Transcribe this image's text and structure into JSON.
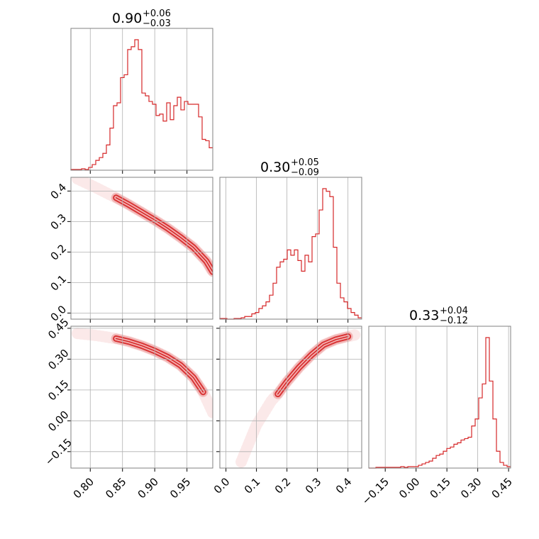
{
  "colors": {
    "series": "#d62728",
    "grid": "#b0b0b0",
    "frame": "#808080"
  },
  "chart_data": {
    "type": "corner",
    "grid": true,
    "parameters": [
      {
        "title": {
          "base": "0.90",
          "plus": "+0.06",
          "minus": "−0.03"
        },
        "range": [
          0.77,
          0.99
        ],
        "ticks": [
          0.8,
          0.85,
          0.9,
          0.95
        ],
        "tick_labels": [
          "0.80",
          "0.85",
          "0.90",
          "0.95"
        ]
      },
      {
        "title": {
          "base": "0.30",
          "plus": "+0.05",
          "minus": "−0.09"
        },
        "range": [
          -0.02,
          0.445
        ],
        "ticks": [
          0.0,
          0.1,
          0.2,
          0.3,
          0.4
        ],
        "tick_labels": [
          "0.0",
          "0.1",
          "0.2",
          "0.3",
          "0.4"
        ]
      },
      {
        "title": {
          "base": "0.33",
          "plus": "+0.04",
          "minus": "−0.12"
        },
        "range": [
          -0.23,
          0.46
        ],
        "ticks": [
          -0.15,
          0.0,
          0.15,
          0.3,
          0.45
        ],
        "tick_labels": [
          "−0.15",
          "0.00",
          "0.15",
          "0.30",
          "0.45"
        ]
      }
    ],
    "histograms": [
      {
        "param": 0,
        "edges": [
          0.77,
          0.7755,
          0.781,
          0.7865,
          0.792,
          0.7975,
          0.803,
          0.8085,
          0.814,
          0.8195,
          0.825,
          0.8305,
          0.836,
          0.8415,
          0.847,
          0.8525,
          0.858,
          0.8635,
          0.869,
          0.8745,
          0.88,
          0.8855,
          0.891,
          0.8965,
          0.902,
          0.9075,
          0.913,
          0.9185,
          0.924,
          0.9295,
          0.935,
          0.9405,
          0.946,
          0.9515,
          0.957,
          0.9625,
          0.968,
          0.9735,
          0.979,
          0.9845,
          0.99
        ],
        "counts": [
          0.005,
          0.005,
          0.005,
          0.01,
          0.005,
          0.02,
          0.04,
          0.07,
          0.09,
          0.12,
          0.18,
          0.3,
          0.46,
          0.48,
          0.66,
          0.68,
          0.86,
          0.88,
          0.93,
          0.86,
          0.55,
          0.53,
          0.49,
          0.47,
          0.39,
          0.4,
          0.35,
          0.48,
          0.36,
          0.46,
          0.52,
          0.43,
          0.49,
          0.47,
          0.47,
          0.47,
          0.38,
          0.22,
          0.21,
          0.16
        ]
      },
      {
        "param": 1,
        "edges": [
          -0.02,
          -0.00838,
          0.00325,
          0.01488,
          0.0265,
          0.03813,
          0.04975,
          0.06138,
          0.073,
          0.08463,
          0.09625,
          0.10788,
          0.1195,
          0.13113,
          0.14275,
          0.15438,
          0.166,
          0.17763,
          0.18925,
          0.20088,
          0.2125,
          0.22413,
          0.23575,
          0.24738,
          0.259,
          0.27063,
          0.28225,
          0.29388,
          0.3055,
          0.31713,
          0.32875,
          0.34038,
          0.352,
          0.36363,
          0.37525,
          0.38688,
          0.3985,
          0.41013,
          0.42175,
          0.43338,
          0.445
        ],
        "counts": [
          0.005,
          0.005,
          0.0,
          0.0,
          0.005,
          0.005,
          0.01,
          0.02,
          0.02,
          0.04,
          0.05,
          0.08,
          0.1,
          0.13,
          0.18,
          0.27,
          0.39,
          0.43,
          0.45,
          0.52,
          0.48,
          0.52,
          0.44,
          0.36,
          0.48,
          0.43,
          0.62,
          0.64,
          0.82,
          0.98,
          0.96,
          0.92,
          0.54,
          0.27,
          0.16,
          0.13,
          0.08,
          0.05,
          0.03,
          0.01
        ]
      },
      {
        "param": 2,
        "edges": [
          -0.23,
          -0.21275,
          -0.1955,
          -0.17825,
          -0.161,
          -0.14375,
          -0.1265,
          -0.10925,
          -0.092,
          -0.07475,
          -0.0575,
          -0.04025,
          -0.023,
          -0.00575,
          0.0115,
          0.02875,
          0.046,
          0.06325,
          0.0805,
          0.09775,
          0.115,
          0.13225,
          0.1495,
          0.16675,
          0.184,
          0.20125,
          0.2185,
          0.23575,
          0.253,
          0.27025,
          0.2875,
          0.30475,
          0.322,
          0.33925,
          0.3565,
          0.37375,
          0.391,
          0.40825,
          0.4255,
          0.44275,
          0.46
        ],
        "counts": [
          0.0,
          0.0,
          0.005,
          0.005,
          0.005,
          0.005,
          0.005,
          0.005,
          0.005,
          0.01,
          0.005,
          0.01,
          0.01,
          0.01,
          0.02,
          0.03,
          0.04,
          0.05,
          0.07,
          0.09,
          0.1,
          0.12,
          0.14,
          0.15,
          0.17,
          0.18,
          0.2,
          0.21,
          0.22,
          0.3,
          0.35,
          0.5,
          0.6,
          0.93,
          0.62,
          0.35,
          0.12,
          0.04,
          0.02,
          0.01
        ]
      }
    ],
    "joint_distributions": [
      {
        "x_param": 0,
        "y_param": 1,
        "ridge": [
          [
            0.78,
            0.44
          ],
          [
            0.81,
            0.41
          ],
          [
            0.84,
            0.378
          ],
          [
            0.86,
            0.355
          ],
          [
            0.88,
            0.33
          ],
          [
            0.9,
            0.305
          ],
          [
            0.92,
            0.278
          ],
          [
            0.94,
            0.248
          ],
          [
            0.96,
            0.215
          ],
          [
            0.98,
            0.17
          ],
          [
            0.99,
            0.135
          ]
        ],
        "core_x_range": [
          0.835,
          0.99
        ]
      },
      {
        "x_param": 0,
        "y_param": 2,
        "ridge": [
          [
            0.78,
            0.425
          ],
          [
            0.81,
            0.415
          ],
          [
            0.84,
            0.4
          ],
          [
            0.86,
            0.385
          ],
          [
            0.88,
            0.365
          ],
          [
            0.9,
            0.34
          ],
          [
            0.92,
            0.31
          ],
          [
            0.94,
            0.27
          ],
          [
            0.96,
            0.21
          ],
          [
            0.975,
            0.14
          ],
          [
            0.99,
            0.04
          ]
        ],
        "core_x_range": [
          0.835,
          0.98
        ]
      },
      {
        "x_param": 1,
        "y_param": 2,
        "ridge": [
          [
            0.05,
            -0.2
          ],
          [
            0.1,
            -0.02
          ],
          [
            0.15,
            0.1
          ],
          [
            0.17,
            0.13
          ],
          [
            0.2,
            0.19
          ],
          [
            0.24,
            0.26
          ],
          [
            0.28,
            0.32
          ],
          [
            0.32,
            0.37
          ],
          [
            0.36,
            0.395
          ],
          [
            0.4,
            0.41
          ],
          [
            0.43,
            0.42
          ]
        ],
        "core_x_range": [
          0.165,
          0.41
        ]
      }
    ]
  }
}
